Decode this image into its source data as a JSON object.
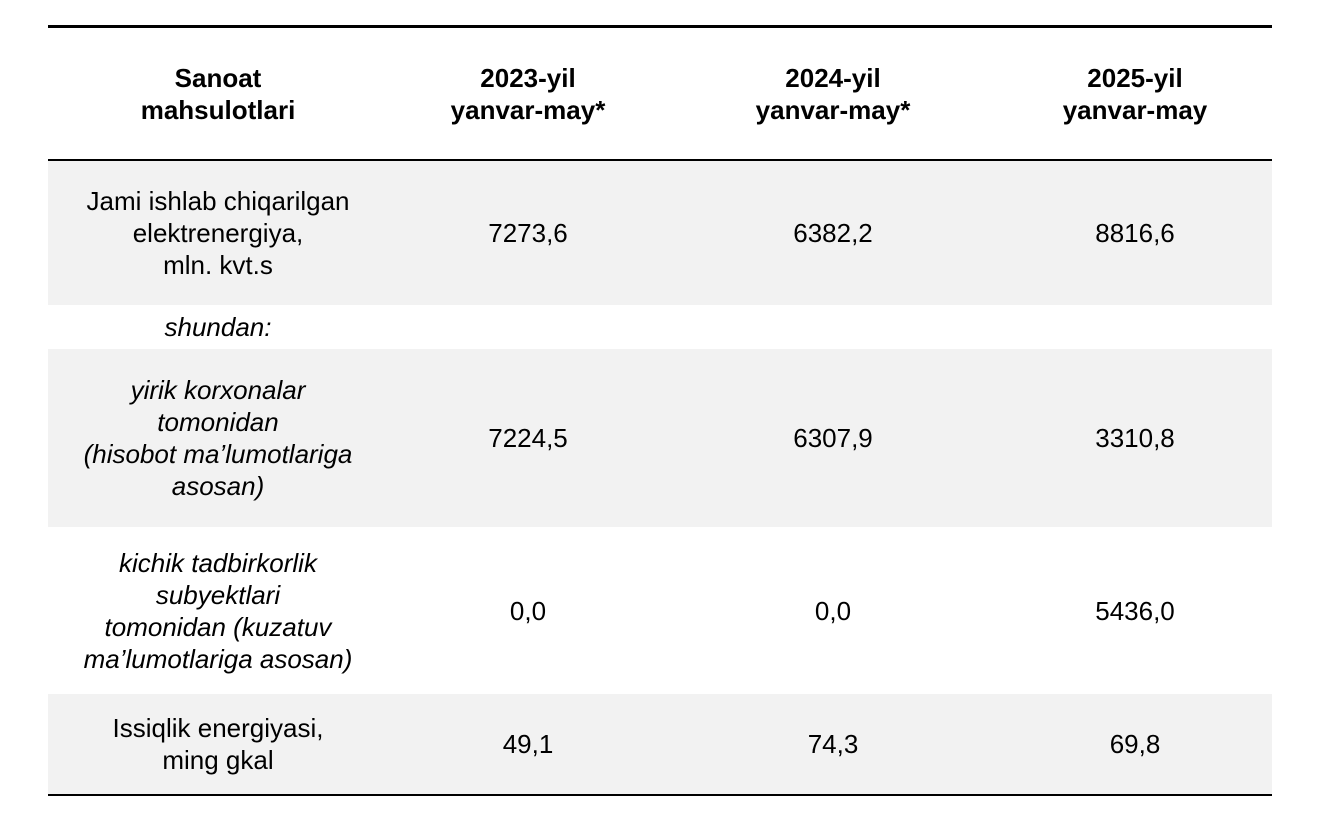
{
  "table": {
    "headers": [
      "Sanoat\nmahsulotlari",
      "2023-yil\nyanvar-may*",
      "2024-yil\nyanvar-may*",
      "2025-yil\nyanvar-may"
    ],
    "rows": [
      {
        "label": "Jami ishlab chiqarilgan\nelektrenergiya,\nmln. kvt.s",
        "values": [
          "7273,6",
          "6382,2",
          "8816,6"
        ]
      },
      {
        "label": "shundan:",
        "values": [
          "",
          "",
          ""
        ]
      },
      {
        "label": "yirik korxonalar\ntomonidan\n(hisobot ma’lumotlariga\nasosan)",
        "values": [
          "7224,5",
          "6307,9",
          "3310,8"
        ]
      },
      {
        "label": "kichik tadbirkorlik\nsubyektlari\ntomonidan (kuzatuv\nma’lumotlariga asosan)",
        "values": [
          "0,0",
          "0,0",
          "5436,0"
        ]
      },
      {
        "label": "Issiqlik energiyasi,\nming gkal",
        "values": [
          "49,1",
          "74,3",
          "69,8"
        ]
      }
    ]
  },
  "colors": {
    "band_fill": "#f2f2f2",
    "rule": "#000000"
  }
}
